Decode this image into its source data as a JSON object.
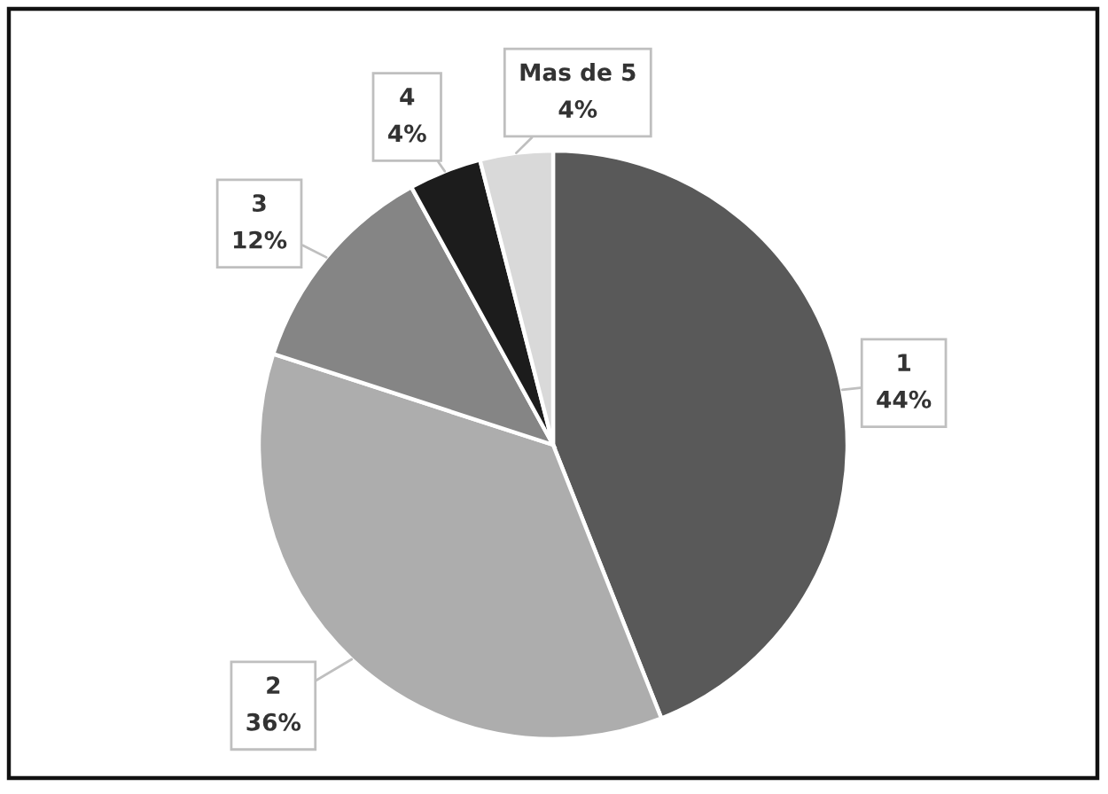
{
  "chart_data": {
    "type": "pie",
    "categories": [
      "1",
      "2",
      "3",
      "4",
      "Mas de 5"
    ],
    "values": [
      44,
      36,
      12,
      4,
      4
    ],
    "colors": [
      "#595959",
      "#adadad",
      "#858585",
      "#1c1c1c",
      "#d9d9d9"
    ],
    "value_labels": [
      "44%",
      "36%",
      "12%",
      "4%",
      "4%"
    ]
  }
}
